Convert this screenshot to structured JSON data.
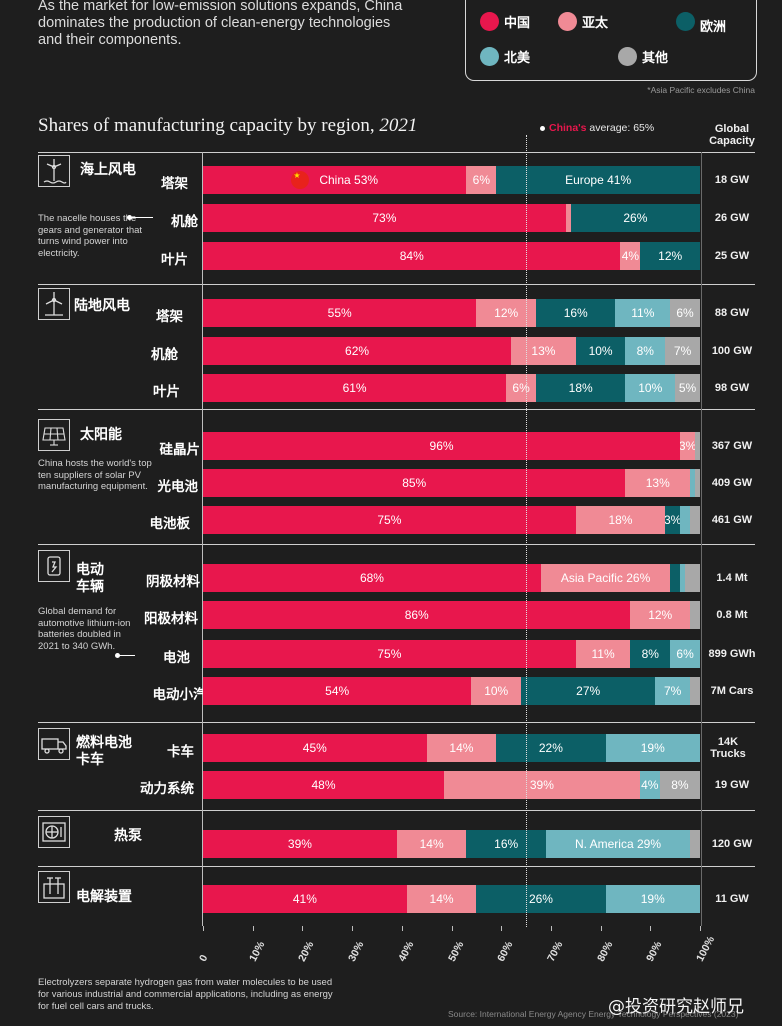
{
  "intro_text": "As the market for low-emission solutions expands, China dominates the production of clean-energy technologies and their components.",
  "legend": [
    {
      "key": "china",
      "label": "中国",
      "color": "#e8174d"
    },
    {
      "key": "apac",
      "label": "亚太",
      "color": "#f08a95"
    },
    {
      "key": "europe",
      "label": "欧洲",
      "color": "#0c5f66"
    },
    {
      "key": "namerica",
      "label": "北美",
      "color": "#6fb6c0"
    },
    {
      "key": "other",
      "label": "其他",
      "color": "#a8a8a8"
    }
  ],
  "asia_note": "*Asia Pacific excludes China",
  "title_main": "Shares of manufacturing capacity by region,",
  "title_year": "2021",
  "average": {
    "country": "China's",
    "text": " average: 65%",
    "value": 65
  },
  "global_capacity_header": "Global Capacity",
  "categories": [
    {
      "key": "offshore",
      "title": "海上风电",
      "icon": "offshore-wind-icon",
      "note": "The nacelle houses the gears and generator that turns wind power into electricity."
    },
    {
      "key": "onshore",
      "title": "陆地风电",
      "icon": "onshore-wind-icon",
      "note": ""
    },
    {
      "key": "solar",
      "title": "太阳能",
      "icon": "solar-panel-icon",
      "note": "China hosts the world's top ten suppliers of solar PV manufacturing equipment."
    },
    {
      "key": "ev",
      "title": "电动 车辆",
      "icon": "electric-car-icon",
      "note": "Global demand for automotive lithium-ion batteries doubled in 2021 to 340 GWh."
    },
    {
      "key": "fuelcell",
      "title": "燃料电池 卡车",
      "icon": "fuel-cell-truck-icon",
      "note": ""
    },
    {
      "key": "heatpump",
      "title": "热泵",
      "icon": "heat-pump-icon",
      "note": ""
    },
    {
      "key": "electrolyzer",
      "title": "电解装置",
      "icon": "electrolyzer-icon",
      "note": ""
    }
  ],
  "chart_data": {
    "type": "bar",
    "orientation": "horizontal",
    "stacked": true,
    "title": "Shares of manufacturing capacity by region, 2021",
    "xlim": [
      0,
      100
    ],
    "x_ticks": [
      "0",
      "10%",
      "20%",
      "30%",
      "40%",
      "50%",
      "60%",
      "70%",
      "80%",
      "90%",
      "100%"
    ],
    "reference_line": {
      "label": "China's average: 65%",
      "value": 65
    },
    "series": [
      {
        "name": "中国",
        "color": "#e8174d"
      },
      {
        "name": "亚太",
        "color": "#f08a95"
      },
      {
        "name": "欧洲",
        "color": "#0c5f66"
      },
      {
        "name": "北美",
        "color": "#6fb6c0"
      },
      {
        "name": "其他",
        "color": "#a8a8a8"
      }
    ],
    "rows": [
      {
        "category": "offshore",
        "label": "塔架",
        "capacity": "18 GW",
        "values": [
          53,
          6,
          41,
          0,
          0
        ],
        "labels": [
          "China  53%",
          "6%",
          "Europe 41%",
          "",
          ""
        ],
        "flag": true
      },
      {
        "category": "offshore",
        "label": "机舱",
        "capacity": "26 GW",
        "values": [
          73,
          1,
          26,
          0,
          0
        ],
        "labels": [
          "73%",
          "",
          "26%",
          "",
          ""
        ]
      },
      {
        "category": "offshore",
        "label": "叶片",
        "capacity": "25 GW",
        "values": [
          84,
          4,
          12,
          0,
          0
        ],
        "labels": [
          "84%",
          "4%",
          "12%",
          "",
          ""
        ]
      },
      {
        "category": "onshore",
        "label": "塔架",
        "capacity": "88 GW",
        "values": [
          55,
          12,
          16,
          11,
          6
        ],
        "labels": [
          "55%",
          "12%",
          "16%",
          "11%",
          "6%"
        ]
      },
      {
        "category": "onshore",
        "label": "机舱",
        "capacity": "100 GW",
        "values": [
          62,
          13,
          10,
          8,
          7
        ],
        "labels": [
          "62%",
          "13%",
          "10%",
          "8%",
          "7%"
        ]
      },
      {
        "category": "onshore",
        "label": "叶片",
        "capacity": "98 GW",
        "values": [
          61,
          6,
          18,
          10,
          5
        ],
        "labels": [
          "61%",
          "6%",
          "18%",
          "10%",
          "5%"
        ]
      },
      {
        "category": "solar",
        "label": "硅晶片",
        "capacity": "367 GW",
        "values": [
          96,
          3,
          0,
          0,
          1
        ],
        "labels": [
          "96%",
          "3%",
          "",
          "",
          ""
        ]
      },
      {
        "category": "solar",
        "label": "光电池",
        "capacity": "409 GW",
        "values": [
          85,
          13,
          0,
          1,
          1
        ],
        "labels": [
          "85%",
          "13%",
          "",
          "",
          ""
        ]
      },
      {
        "category": "solar",
        "label": "电池板",
        "capacity": "461 GW",
        "values": [
          75,
          18,
          3,
          2,
          2
        ],
        "labels": [
          "75%",
          "18%",
          "3%",
          "",
          ""
        ]
      },
      {
        "category": "ev",
        "label": "阴极材料",
        "capacity": "1.4 Mt",
        "values": [
          68,
          26,
          2,
          1,
          3
        ],
        "labels": [
          "68%",
          "Asia Pacific  26%",
          "",
          "",
          ""
        ]
      },
      {
        "category": "ev",
        "label": "阳极材料",
        "capacity": "0.8 Mt",
        "values": [
          86,
          12,
          0,
          0,
          2
        ],
        "labels": [
          "86%",
          "12%",
          "",
          "",
          ""
        ]
      },
      {
        "category": "ev",
        "label": "电池",
        "capacity": "899 GWh",
        "values": [
          75,
          11,
          8,
          6,
          0
        ],
        "labels": [
          "75%",
          "11%",
          "8%",
          "6%",
          ""
        ]
      },
      {
        "category": "ev",
        "label": "电动小汽车",
        "capacity": "7M Cars",
        "values": [
          54,
          10,
          27,
          7,
          2
        ],
        "labels": [
          "54%",
          "10%",
          "27%",
          "7%",
          ""
        ]
      },
      {
        "category": "fuelcell",
        "label": "卡车",
        "capacity": "14K Trucks",
        "values": [
          45,
          14,
          22,
          19,
          0
        ],
        "labels": [
          "45%",
          "14%",
          "22%",
          "19%",
          ""
        ]
      },
      {
        "category": "fuelcell",
        "label": "动力系统",
        "capacity": "19 GW",
        "values": [
          48,
          39,
          0,
          4,
          8
        ],
        "labels": [
          "48%",
          "39%",
          "",
          "4%",
          "8%"
        ]
      },
      {
        "category": "heatpump",
        "label": "热泵",
        "capacity": "120 GW",
        "values": [
          39,
          14,
          16,
          29,
          2
        ],
        "labels": [
          "39%",
          "14%",
          "16%",
          "N. America  29%",
          ""
        ]
      },
      {
        "category": "electrolyzer",
        "label": "电解装置",
        "capacity": "11 GW",
        "values": [
          41,
          14,
          26,
          19,
          0
        ],
        "labels": [
          "41%",
          "14%",
          "26%",
          "19%",
          ""
        ]
      }
    ]
  },
  "footnote": "Electrolyzers separate hydrogen gas from water molecules to be used for various industrial and commercial applications, including as energy for fuel cell cars and trucks.",
  "source": "Source: International Energy Agency Energy Technology Perspectives (2023)",
  "watermark": "@投资研究赵师兄"
}
